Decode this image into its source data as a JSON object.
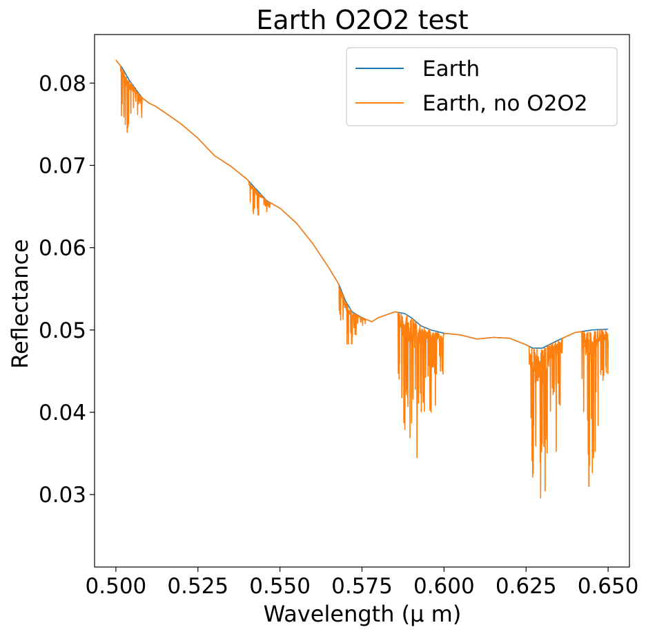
{
  "chart_data": {
    "type": "line",
    "title": "Earth O2O2 test",
    "xlabel": "Wavelength (μ m)",
    "ylabel": "Reflectance",
    "xlim": [
      0.4935,
      0.6565
    ],
    "ylim": [
      0.0212,
      0.0859
    ],
    "xticks": [
      0.5,
      0.525,
      0.55,
      0.575,
      0.6,
      0.625,
      0.65
    ],
    "xtick_labels": [
      "0.500",
      "0.525",
      "0.550",
      "0.575",
      "0.600",
      "0.625",
      "0.650"
    ],
    "yticks": [
      0.03,
      0.04,
      0.05,
      0.06,
      0.07,
      0.08
    ],
    "ytick_labels": [
      "0.03",
      "0.04",
      "0.05",
      "0.06",
      "0.07",
      "0.08"
    ],
    "grid": false,
    "legend_position": "upper right",
    "series": [
      {
        "name": "Earth",
        "color": "#1f77b4",
        "x": [
          0.5,
          0.502,
          0.504,
          0.506,
          0.508,
          0.51,
          0.512,
          0.515,
          0.52,
          0.525,
          0.53,
          0.535,
          0.54,
          0.543,
          0.546,
          0.55,
          0.555,
          0.56,
          0.565,
          0.568,
          0.57,
          0.572,
          0.575,
          0.578,
          0.58,
          0.585,
          0.588,
          0.59,
          0.593,
          0.596,
          0.6,
          0.605,
          0.61,
          0.615,
          0.62,
          0.625,
          0.627,
          0.63,
          0.635,
          0.64,
          0.645,
          0.65
        ],
        "values": [
          0.0828,
          0.0818,
          0.0804,
          0.0793,
          0.0782,
          0.0776,
          0.0772,
          0.0764,
          0.075,
          0.0733,
          0.0712,
          0.0699,
          0.0683,
          0.067,
          0.0657,
          0.0648,
          0.063,
          0.0605,
          0.0575,
          0.0555,
          0.0535,
          0.0522,
          0.0515,
          0.051,
          0.0515,
          0.0522,
          0.052,
          0.0515,
          0.0505,
          0.05,
          0.0496,
          0.0494,
          0.0489,
          0.0491,
          0.049,
          0.0482,
          0.0478,
          0.0478,
          0.0488,
          0.0497,
          0.05,
          0.0501
        ]
      },
      {
        "name": "Earth, no O2O2",
        "color": "#ff7f0e",
        "x": [
          0.5,
          0.502,
          0.504,
          0.506,
          0.508,
          0.51,
          0.512,
          0.515,
          0.52,
          0.525,
          0.53,
          0.535,
          0.54,
          0.543,
          0.546,
          0.55,
          0.555,
          0.56,
          0.565,
          0.568,
          0.57,
          0.572,
          0.575,
          0.578,
          0.58,
          0.585,
          0.588,
          0.59,
          0.593,
          0.596,
          0.6,
          0.605,
          0.61,
          0.615,
          0.62,
          0.625,
          0.627,
          0.63,
          0.635,
          0.64,
          0.645,
          0.65
        ],
        "values": [
          0.0828,
          0.0818,
          0.0804,
          0.0793,
          0.0782,
          0.0776,
          0.0772,
          0.0764,
          0.075,
          0.0733,
          0.0712,
          0.0699,
          0.0683,
          0.067,
          0.0657,
          0.0648,
          0.063,
          0.0605,
          0.0575,
          0.0555,
          0.0535,
          0.0522,
          0.0515,
          0.051,
          0.0515,
          0.0522,
          0.052,
          0.0515,
          0.0505,
          0.05,
          0.0496,
          0.0494,
          0.0489,
          0.0491,
          0.049,
          0.0482,
          0.0478,
          0.0478,
          0.0488,
          0.0497,
          0.05,
          0.0501
        ],
        "absorption_bands": [
          {
            "x_start": 0.5015,
            "x_end": 0.508,
            "min": 0.074
          },
          {
            "x_start": 0.5405,
            "x_end": 0.547,
            "min": 0.0635
          },
          {
            "x_start": 0.568,
            "x_end": 0.576,
            "min": 0.0483
          },
          {
            "x_start": 0.586,
            "x_end": 0.6,
            "min": 0.0345
          },
          {
            "x_start": 0.626,
            "x_end": 0.636,
            "min": 0.024
          },
          {
            "x_start": 0.642,
            "x_end": 0.65,
            "min": 0.031
          }
        ]
      }
    ]
  }
}
